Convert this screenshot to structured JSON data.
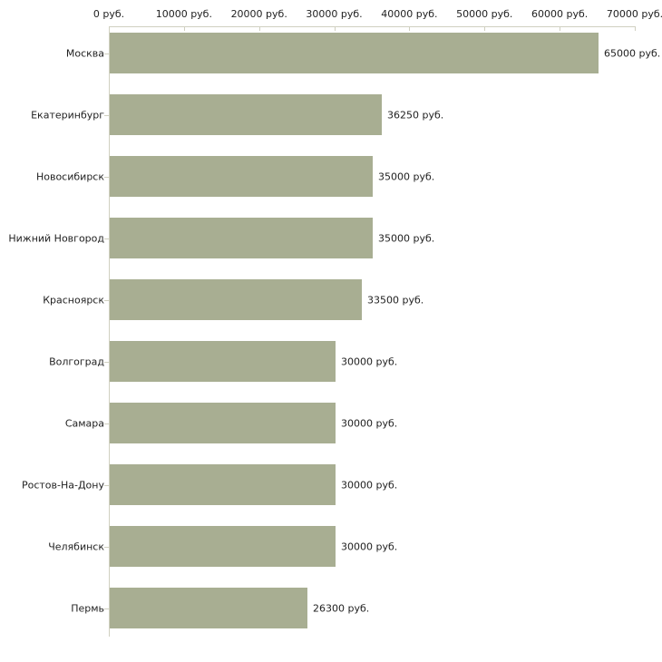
{
  "chart_data": {
    "type": "bar",
    "orientation": "horizontal",
    "title": "",
    "xlabel": "",
    "ylabel": "",
    "grid": false,
    "legend": false,
    "categories": [
      "Москва",
      "Екатеринбург",
      "Новосибирск",
      "Нижний Новгород",
      "Красноярск",
      "Волгоград",
      "Самара",
      "Ростов-На-Дону",
      "Челябинск",
      "Пермь"
    ],
    "values": [
      65000,
      36250,
      35000,
      35000,
      33500,
      30000,
      30000,
      30000,
      30000,
      26300
    ],
    "value_labels": [
      "65000 руб.",
      "36250 руб.",
      "35000 руб.",
      "35000 руб.",
      "33500 руб.",
      "30000 руб.",
      "30000 руб.",
      "30000 руб.",
      "30000 руб.",
      "26300 руб."
    ],
    "x_axis": {
      "min": 0,
      "max": 70000,
      "unit": "руб.",
      "tick_labels": [
        "0 руб.",
        "10000 руб.",
        "20000 руб.",
        "30000 руб.",
        "40000 руб.",
        "50000 руб.",
        "60000 руб.",
        "70000 руб."
      ]
    },
    "colors": {
      "bar": "#a8ae92",
      "axis": "#d0d0c0",
      "text": "#222222",
      "background": "#ffffff"
    }
  }
}
